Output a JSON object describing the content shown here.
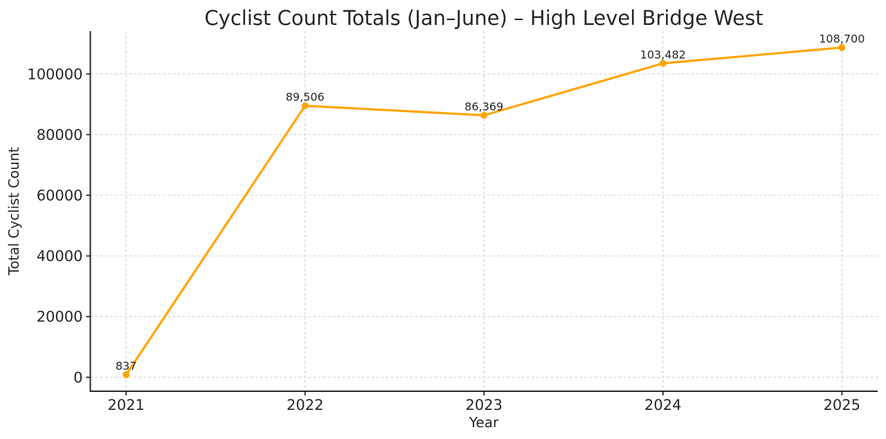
{
  "chart_data": {
    "type": "line",
    "title": "Cyclist Count Totals (Jan–June) – High Level Bridge West",
    "xlabel": "Year",
    "ylabel": "Total Cyclist Count",
    "x": [
      2021,
      2022,
      2023,
      2024,
      2025
    ],
    "series": [
      {
        "name": "Total Cyclist Count",
        "values": [
          837,
          89506,
          86369,
          103482,
          108700
        ]
      }
    ],
    "point_labels": [
      "837",
      "89,506",
      "86,369",
      "103,482",
      "108,700"
    ],
    "xlim": [
      2020.8,
      2025.2
    ],
    "ylim": [
      -4600,
      114100
    ],
    "yticks": [
      0,
      20000,
      40000,
      60000,
      80000,
      100000
    ],
    "grid": true,
    "grid_style": "dashed",
    "line_color": "#FFA500",
    "marker": "circle",
    "legend_position": "none",
    "text_color": "#262626",
    "grid_color": "#d0d0d0"
  }
}
